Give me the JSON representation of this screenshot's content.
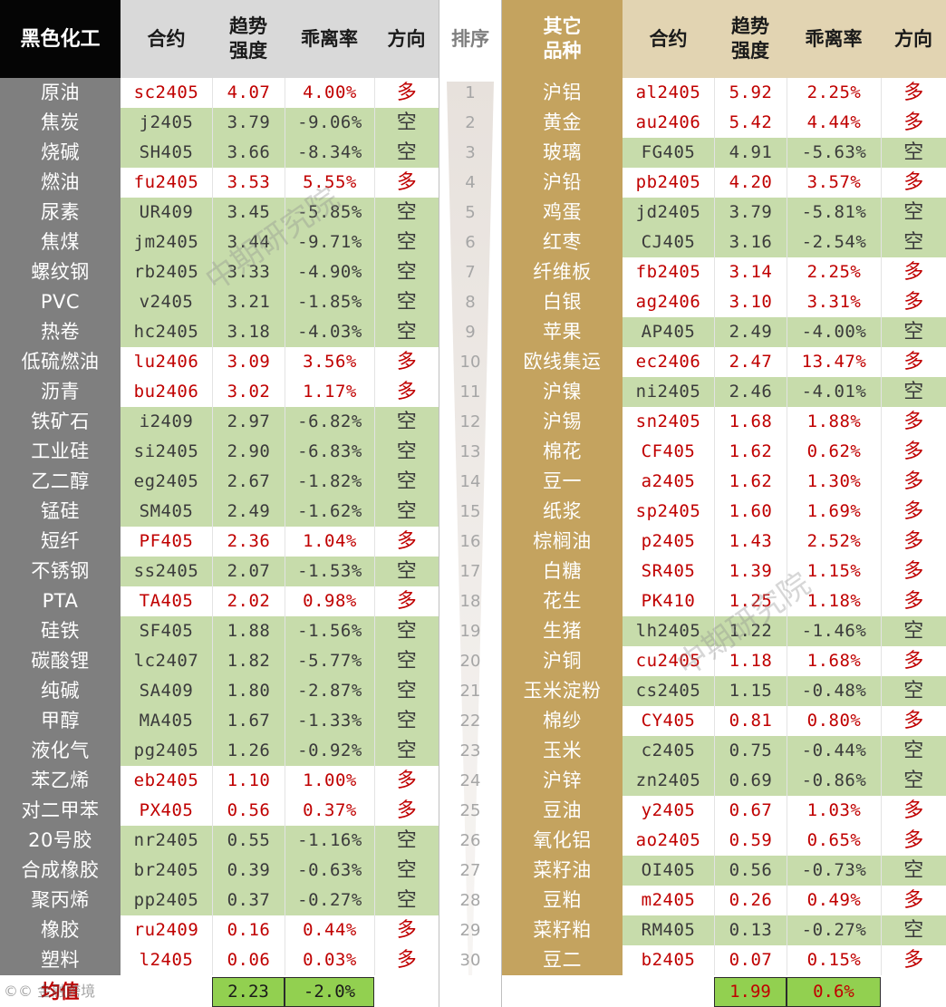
{
  "headers": {
    "left_section": "黑色化工",
    "contract": "合约",
    "strength": "趋势\n强度",
    "deviation": "乖离率",
    "direction": "方向",
    "rank": "排序",
    "right_section": "其它\n品种"
  },
  "rows_left": [
    {
      "name": "原油",
      "contract": "sc2405",
      "strength": "4.07",
      "deviation": "4.00%",
      "dir": "多"
    },
    {
      "name": "焦炭",
      "contract": "j2405",
      "strength": "3.79",
      "deviation": "-9.06%",
      "dir": "空"
    },
    {
      "name": "烧碱",
      "contract": "SH405",
      "strength": "3.66",
      "deviation": "-8.34%",
      "dir": "空"
    },
    {
      "name": "燃油",
      "contract": "fu2405",
      "strength": "3.53",
      "deviation": "5.55%",
      "dir": "多"
    },
    {
      "name": "尿素",
      "contract": "UR409",
      "strength": "3.45",
      "deviation": "-5.85%",
      "dir": "空"
    },
    {
      "name": "焦煤",
      "contract": "jm2405",
      "strength": "3.44",
      "deviation": "-9.71%",
      "dir": "空"
    },
    {
      "name": "螺纹钢",
      "contract": "rb2405",
      "strength": "3.33",
      "deviation": "-4.90%",
      "dir": "空"
    },
    {
      "name": "PVC",
      "contract": "v2405",
      "strength": "3.21",
      "deviation": "-1.85%",
      "dir": "空"
    },
    {
      "name": "热卷",
      "contract": "hc2405",
      "strength": "3.18",
      "deviation": "-4.03%",
      "dir": "空"
    },
    {
      "name": "低硫燃油",
      "contract": "lu2406",
      "strength": "3.09",
      "deviation": "3.56%",
      "dir": "多"
    },
    {
      "name": "沥青",
      "contract": "bu2406",
      "strength": "3.02",
      "deviation": "1.17%",
      "dir": "多"
    },
    {
      "name": "铁矿石",
      "contract": "i2409",
      "strength": "2.97",
      "deviation": "-6.82%",
      "dir": "空"
    },
    {
      "name": "工业硅",
      "contract": "si2405",
      "strength": "2.90",
      "deviation": "-6.83%",
      "dir": "空"
    },
    {
      "name": "乙二醇",
      "contract": "eg2405",
      "strength": "2.67",
      "deviation": "-1.82%",
      "dir": "空"
    },
    {
      "name": "锰硅",
      "contract": "SM405",
      "strength": "2.49",
      "deviation": "-1.62%",
      "dir": "空"
    },
    {
      "name": "短纤",
      "contract": "PF405",
      "strength": "2.36",
      "deviation": "1.04%",
      "dir": "多"
    },
    {
      "name": "不锈钢",
      "contract": "ss2405",
      "strength": "2.07",
      "deviation": "-1.53%",
      "dir": "空"
    },
    {
      "name": "PTA",
      "contract": "TA405",
      "strength": "2.02",
      "deviation": "0.98%",
      "dir": "多"
    },
    {
      "name": "硅铁",
      "contract": "SF405",
      "strength": "1.88",
      "deviation": "-1.56%",
      "dir": "空"
    },
    {
      "name": "碳酸锂",
      "contract": "lc2407",
      "strength": "1.82",
      "deviation": "-5.77%",
      "dir": "空"
    },
    {
      "name": "纯碱",
      "contract": "SA409",
      "strength": "1.80",
      "deviation": "-2.87%",
      "dir": "空"
    },
    {
      "name": "甲醇",
      "contract": "MA405",
      "strength": "1.67",
      "deviation": "-1.33%",
      "dir": "空"
    },
    {
      "name": "液化气",
      "contract": "pg2405",
      "strength": "1.26",
      "deviation": "-0.92%",
      "dir": "空"
    },
    {
      "name": "苯乙烯",
      "contract": "eb2405",
      "strength": "1.10",
      "deviation": "1.00%",
      "dir": "多"
    },
    {
      "name": "对二甲苯",
      "contract": "PX405",
      "strength": "0.56",
      "deviation": "0.37%",
      "dir": "多"
    },
    {
      "name": "20号胶",
      "contract": "nr2405",
      "strength": "0.55",
      "deviation": "-1.16%",
      "dir": "空"
    },
    {
      "name": "合成橡胶",
      "contract": "br2405",
      "strength": "0.39",
      "deviation": "-0.63%",
      "dir": "空"
    },
    {
      "name": "聚丙烯",
      "contract": "pp2405",
      "strength": "0.37",
      "deviation": "-0.27%",
      "dir": "空"
    },
    {
      "name": "橡胶",
      "contract": "ru2409",
      "strength": "0.16",
      "deviation": "0.44%",
      "dir": "多"
    },
    {
      "name": "塑料",
      "contract": "l2405",
      "strength": "0.06",
      "deviation": "0.03%",
      "dir": "多"
    }
  ],
  "rows_right": [
    {
      "name": "沪铝",
      "contract": "al2405",
      "strength": "5.92",
      "deviation": "2.25%",
      "dir": "多"
    },
    {
      "name": "黄金",
      "contract": "au2406",
      "strength": "5.42",
      "deviation": "4.44%",
      "dir": "多"
    },
    {
      "name": "玻璃",
      "contract": "FG405",
      "strength": "4.91",
      "deviation": "-5.63%",
      "dir": "空"
    },
    {
      "name": "沪铅",
      "contract": "pb2405",
      "strength": "4.20",
      "deviation": "3.57%",
      "dir": "多"
    },
    {
      "name": "鸡蛋",
      "contract": "jd2405",
      "strength": "3.79",
      "deviation": "-5.81%",
      "dir": "空"
    },
    {
      "name": "红枣",
      "contract": "CJ405",
      "strength": "3.16",
      "deviation": "-2.54%",
      "dir": "空"
    },
    {
      "name": "纤维板",
      "contract": "fb2405",
      "strength": "3.14",
      "deviation": "2.25%",
      "dir": "多"
    },
    {
      "name": "白银",
      "contract": "ag2406",
      "strength": "3.10",
      "deviation": "3.31%",
      "dir": "多"
    },
    {
      "name": "苹果",
      "contract": "AP405",
      "strength": "2.49",
      "deviation": "-4.00%",
      "dir": "空"
    },
    {
      "name": "欧线集运",
      "contract": "ec2406",
      "strength": "2.47",
      "deviation": "13.47%",
      "dir": "多"
    },
    {
      "name": "沪镍",
      "contract": "ni2405",
      "strength": "2.46",
      "deviation": "-4.01%",
      "dir": "空"
    },
    {
      "name": "沪锡",
      "contract": "sn2405",
      "strength": "1.68",
      "deviation": "1.88%",
      "dir": "多"
    },
    {
      "name": "棉花",
      "contract": "CF405",
      "strength": "1.62",
      "deviation": "0.62%",
      "dir": "多"
    },
    {
      "name": "豆一",
      "contract": "a2405",
      "strength": "1.62",
      "deviation": "1.30%",
      "dir": "多"
    },
    {
      "name": "纸浆",
      "contract": "sp2405",
      "strength": "1.60",
      "deviation": "1.69%",
      "dir": "多"
    },
    {
      "name": "棕榈油",
      "contract": "p2405",
      "strength": "1.43",
      "deviation": "2.52%",
      "dir": "多"
    },
    {
      "name": "白糖",
      "contract": "SR405",
      "strength": "1.39",
      "deviation": "1.15%",
      "dir": "多"
    },
    {
      "name": "花生",
      "contract": "PK410",
      "strength": "1.25",
      "deviation": "1.18%",
      "dir": "多"
    },
    {
      "name": "生猪",
      "contract": "lh2405",
      "strength": "1.22",
      "deviation": "-1.46%",
      "dir": "空"
    },
    {
      "name": "沪铜",
      "contract": "cu2405",
      "strength": "1.18",
      "deviation": "1.68%",
      "dir": "多"
    },
    {
      "name": "玉米淀粉",
      "contract": "cs2405",
      "strength": "1.15",
      "deviation": "-0.48%",
      "dir": "空"
    },
    {
      "name": "棉纱",
      "contract": "CY405",
      "strength": "0.81",
      "deviation": "0.80%",
      "dir": "多"
    },
    {
      "name": "玉米",
      "contract": "c2405",
      "strength": "0.75",
      "deviation": "-0.44%",
      "dir": "空"
    },
    {
      "name": "沪锌",
      "contract": "zn2405",
      "strength": "0.69",
      "deviation": "-0.86%",
      "dir": "空"
    },
    {
      "name": "豆油",
      "contract": "y2405",
      "strength": "0.67",
      "deviation": "1.03%",
      "dir": "多"
    },
    {
      "name": "氧化铝",
      "contract": "ao2405",
      "strength": "0.59",
      "deviation": "0.65%",
      "dir": "多"
    },
    {
      "name": "菜籽油",
      "contract": "OI405",
      "strength": "0.56",
      "deviation": "-0.73%",
      "dir": "空"
    },
    {
      "name": "豆粕",
      "contract": "m2405",
      "strength": "0.26",
      "deviation": "0.49%",
      "dir": "多"
    },
    {
      "name": "菜籽粕",
      "contract": "RM405",
      "strength": "0.13",
      "deviation": "-0.27%",
      "dir": "空"
    },
    {
      "name": "豆二",
      "contract": "b2405",
      "strength": "0.07",
      "deviation": "0.15%",
      "dir": "多"
    }
  ],
  "ranks": [
    "1",
    "2",
    "3",
    "4",
    "5",
    "6",
    "7",
    "8",
    "9",
    "10",
    "11",
    "12",
    "13",
    "14",
    "15",
    "16",
    "17",
    "18",
    "19",
    "20",
    "21",
    "22",
    "23",
    "24",
    "25",
    "26",
    "27",
    "28",
    "29",
    "30"
  ],
  "footer": {
    "label": "均值",
    "left_avg_strength": "2.23",
    "left_avg_deviation": "-2.0%",
    "right_avg_strength": "1.99",
    "right_avg_deviation": "0.6%"
  },
  "watermark": {
    "text": "中期研究院",
    "logo_text": "©© 金融跨境"
  },
  "colors": {
    "short_bg": "#c7dcab",
    "long_text": "#c00000",
    "avg_bg": "#92d050",
    "left_name_bg": "#7f7f7f",
    "right_name_bg": "#c4a35f"
  }
}
